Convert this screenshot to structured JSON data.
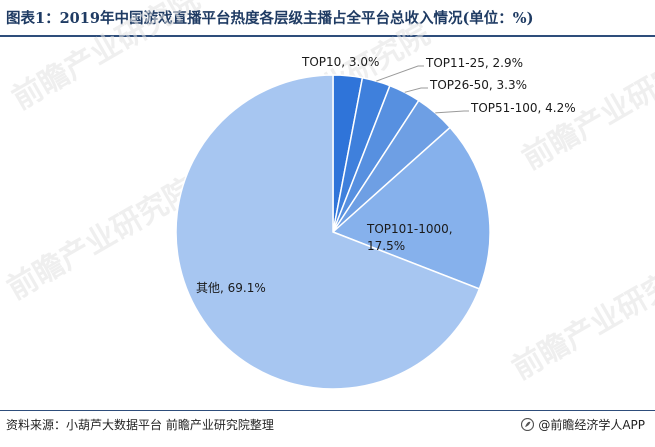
{
  "title": "图表1：2019年中国游戏直播平台热度各层级主播占全平台总收入情况(单位：%)",
  "source": "资料来源：小葫芦大数据平台 前瞻产业研究院整理",
  "credit": "@前瞻经济学人APP",
  "credit_icon": "leaf-logo-icon",
  "watermark_text": "前瞻产业研究院",
  "chart_data": {
    "type": "pie",
    "unit": "%",
    "slices": [
      {
        "label": "TOP10",
        "value": 3.0,
        "display": "TOP10, 3.0%",
        "color": "#2f74d9"
      },
      {
        "label": "TOP11-25",
        "value": 2.9,
        "display": "TOP11-25, 2.9%",
        "color": "#3f80dc"
      },
      {
        "label": "TOP26-50",
        "value": 3.3,
        "display": "TOP26-50, 3.3%",
        "color": "#5790e0"
      },
      {
        "label": "TOP51-100",
        "value": 4.2,
        "display": "TOP51-100, 4.2%",
        "color": "#6e9fe4"
      },
      {
        "label": "TOP101-1000",
        "value": 17.5,
        "display": [
          "TOP101-1000,",
          "17.5%"
        ],
        "color": "#86b1ec"
      },
      {
        "label": "其他",
        "value": 69.1,
        "display": "其他, 69.1%",
        "color": "#a7c6f1"
      }
    ]
  }
}
